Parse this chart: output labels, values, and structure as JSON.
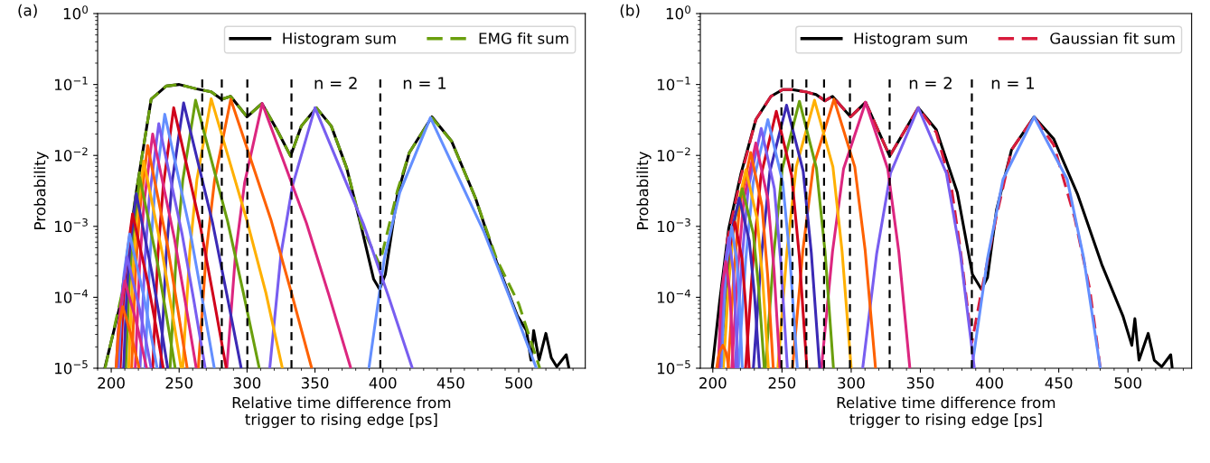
{
  "chart_data": [
    {
      "type": "line",
      "title": "(a)",
      "xlabel": "Relative time difference from\ntrigger to rising edge [ps]",
      "ylabel": "Probability",
      "log": "y",
      "legend": "top right",
      "grid": false,
      "xlim": [
        190,
        549
      ],
      "xticks": [
        200,
        250,
        300,
        350,
        400,
        450,
        500
      ],
      "ylim": [
        1e-05,
        1
      ],
      "yticks": [
        {
          "value": 1e-05,
          "label": "10$^{−5}$"
        },
        {
          "value": 0.0001,
          "label": "10$^{−4}$"
        },
        {
          "value": 0.001,
          "label": "10$^{−3}$"
        },
        {
          "value": 0.01,
          "label": "10$^{−2}$"
        },
        {
          "value": 0.1,
          "label": "10$^{−1}$"
        },
        {
          "value": 1,
          "label": "10$^{0}$"
        }
      ],
      "ref_lines": [
        {
          "axis": "x",
          "value": 267.0,
          "color": "#000000",
          "line_style": "dashed"
        },
        {
          "axis": "x",
          "value": 281.4,
          "color": "#000000",
          "line_style": "dashed"
        },
        {
          "axis": "x",
          "value": 300.2,
          "color": "#000000",
          "line_style": "dashed"
        },
        {
          "axis": "x",
          "value": 332.7,
          "color": "#000000",
          "line_style": "dashed"
        },
        {
          "axis": "x",
          "value": 398.1,
          "color": "#000000",
          "line_style": "dashed"
        }
      ],
      "annotations": [
        "n = 2",
        "n = 1"
      ],
      "series": [
        {
          "color": "#fe6100",
          "x": [
            203.6,
            204.8,
            206.0,
            208.4,
            214.5,
            217.6,
            220.6
          ],
          "values": [
            1e-05,
            2.4e-05,
            4.1e-05,
            7.4e-05,
            3e-05,
            1.7e-05,
            1e-05
          ]
        },
        {
          "color": "#dc267f",
          "x": [
            203.6,
            205.2,
            206.8,
            210.0,
            218.1,
            222.1,
            226.1
          ],
          "values": [
            1e-05,
            3.5e-05,
            7.2e-05,
            0.00017,
            4.8e-05,
            2.2e-05,
            1e-05
          ]
        },
        {
          "color": "#785ef0",
          "x": [
            204.7,
            206.5,
            208.2,
            211.7,
            220.6,
            225.0,
            229.4
          ],
          "values": [
            1e-05,
            4.9e-05,
            0.000126,
            0.00037,
            7.2e-05,
            2.8e-05,
            1e-05
          ]
        },
        {
          "color": "#648fff",
          "x": [
            205.3,
            207.4,
            209.4,
            213.5,
            223.7,
            228.7,
            233.8
          ],
          "values": [
            1e-05,
            6.8e-05,
            0.00021,
            0.00078,
            0.00011,
            3.4e-05,
            1e-05
          ]
        },
        {
          "color": "#d0021b",
          "x": [
            206.6,
            208.9,
            211.2,
            215.7,
            227.0,
            232.7,
            238.3
          ],
          "values": [
            1e-05,
            8.9e-05,
            0.00034,
            0.0015,
            0.00016,
            4.1e-05,
            1e-05
          ]
        },
        {
          "color": "#3b2ab5",
          "x": [
            209.1,
            211.4,
            213.8,
            218.4,
            230.0,
            235.8,
            241.6
          ],
          "values": [
            1e-05,
            0.00012,
            0.00052,
            0.0029,
            0.00022,
            4.9e-05,
            1e-05
          ]
        },
        {
          "color": "#6a9f0d",
          "x": [
            210.6,
            213.2,
            215.8,
            221.0,
            234.1,
            240.6,
            247.1
          ],
          "values": [
            1e-05,
            0.00015,
            0.00076,
            0.0049,
            0.0003,
            5.6e-05,
            1e-05
          ]
        },
        {
          "color": "#ffb000",
          "x": [
            212.8,
            215.6,
            218.4,
            223.9,
            237.7,
            244.6,
            251.5
          ],
          "values": [
            1e-05,
            0.00019,
            0.0011,
            0.0083,
            0.00041,
            6.6e-05,
            1e-05
          ]
        },
        {
          "color": "#fe6100",
          "x": [
            215.0,
            217.9,
            220.9,
            226.8,
            241.4,
            248.6,
            255.9
          ],
          "values": [
            1e-05,
            0.00023,
            0.0016,
            0.0138,
            0.00054,
            7.6e-05,
            1e-05
          ]
        },
        {
          "color": "#dc267f",
          "x": [
            217.7,
            220.9,
            224.1,
            230.5,
            246.6,
            254.6,
            262.6
          ],
          "values": [
            1e-05,
            0.00028,
            0.0021,
            0.02,
            0.00066,
            8.5e-05,
            1e-05
          ]
        },
        {
          "color": "#785ef0",
          "x": [
            221.2,
            224.7,
            228.1,
            235.0,
            252.1,
            260.7,
            269.2
          ],
          "values": [
            1e-05,
            0.00032,
            0.0026,
            0.028,
            0.00079,
            9.3e-05,
            1e-05
          ]
        },
        {
          "color": "#648fff",
          "x": [
            224.8,
            228.5,
            232.1,
            239.4,
            257.7,
            266.8,
            275.9
          ],
          "values": [
            1e-05,
            0.00037,
            0.0032,
            0.038,
            0.00093,
            0.0001,
            1e-05
          ]
        },
        {
          "color": "#d0021b",
          "x": [
            230.5,
            234.4,
            238.3,
            246.0,
            265.4,
            275.0,
            284.7
          ],
          "values": [
            1e-05,
            0.00041,
            0.0037,
            0.047,
            0.00105,
            0.000107,
            1e-05
          ]
        },
        {
          "color": "#3b2ab5",
          "x": [
            236.3,
            240.6,
            244.8,
            253.3,
            274.5,
            285.1,
            295.7
          ],
          "values": [
            1e-05,
            0.00044,
            0.0042,
            0.055,
            0.00115,
            0.00011,
            1e-05
          ]
        },
        {
          "color": "#6a9f0d",
          "x": [
            243.3,
            248.0,
            252.7,
            262.1,
            285.6,
            297.3,
            309.0
          ],
          "values": [
            1e-05,
            0.00045,
            0.0045,
            0.06,
            0.0012,
            0.000115,
            1e-05
          ]
        },
        {
          "color": "#ffb000",
          "x": [
            252.6,
            257.9,
            263.1,
            273.6,
            299.8,
            313.9,
            326.0
          ],
          "values": [
            1e-05,
            0.00046,
            0.0046,
            0.063,
            0.00123,
            0.000115,
            1e-05
          ]
        },
        {
          "color": "#fe6100",
          "x": [
            264.1,
            270.1,
            276.1,
            288.0,
            317.8,
            332.7,
            347.6
          ],
          "values": [
            1e-05,
            0.00046,
            0.0045,
            0.062,
            0.0012,
            0.000115,
            1e-05
          ]
        },
        {
          "color": "#dc267f",
          "x": [
            285.1,
            291.6,
            298.2,
            311.2,
            343.8,
            360.1,
            376.4
          ],
          "values": [
            1e-05,
            0.00043,
            0.0041,
            0.054,
            0.0011,
            0.00011,
            1e-05
          ]
        },
        {
          "color": "#785ef0",
          "x": [
            316.7,
            325.0,
            333.4,
            350.0,
            385.9,
            403.8,
            421.7
          ],
          "values": [
            1e-05,
            0.00041,
            0.0037,
            0.047,
            0.00105,
            0.000107,
            1e-05
          ]
        },
        {
          "color": "#648fff",
          "x": [
            389.7,
            401.0,
            412.4,
            435.0,
            474.0,
            493.5,
            513.0
          ],
          "values": [
            1e-05,
            0.00035,
            0.003,
            0.034,
            0.00087,
            9.8e-05,
            1e-05
          ]
        },
        {
          "name": "Histogram sum",
          "color": "#000000",
          "line_style": "solid",
          "x": [
            195.2,
            207.3,
            218.4,
            229.4,
            240.5,
            250,
            262.5,
            273.6,
            281.3,
            287.9,
            300,
            311,
            322,
            332,
            340,
            351,
            362,
            373.4,
            384.4,
            393.2,
            397.6,
            401.8,
            410.7,
            419.5,
            436.1,
            450.5,
            468.2,
            483.6,
            499,
            505.7,
            509,
            511,
            515,
            520,
            524,
            528,
            535,
            537
          ],
          "values": [
            1e-05,
            8.9e-05,
            0.003,
            0.062,
            0.095,
            0.1,
            0.087,
            0.079,
            0.062,
            0.068,
            0.035,
            0.054,
            0.023,
            0.0098,
            0.026,
            0.047,
            0.026,
            0.0066,
            0.00093,
            0.00018,
            0.00013,
            0.00021,
            0.0028,
            0.011,
            0.035,
            0.016,
            0.0025,
            0.00032,
            5.5e-05,
            3.4e-05,
            1.3e-05,
            3.4e-05,
            1.3e-05,
            3.1e-05,
            1.4e-05,
            1.05e-05,
            1.55e-05,
            1e-05
          ]
        },
        {
          "name": "EMG fit sum",
          "color": "#6a9f0d",
          "line_style": "dashed",
          "x": [
            195.5,
            207.3,
            218.4,
            229.4,
            240.5,
            250,
            262.5,
            273.6,
            281.3,
            287.9,
            300,
            311,
            322,
            332,
            340,
            351,
            362,
            373.4,
            384.4,
            397.6,
            410.7,
            419.5,
            436.1,
            450.5,
            468.2,
            483.6,
            500,
            515.5
          ],
          "values": [
            1e-05,
            0.0001,
            0.003,
            0.062,
            0.095,
            0.1,
            0.087,
            0.079,
            0.062,
            0.068,
            0.035,
            0.054,
            0.023,
            0.0098,
            0.026,
            0.047,
            0.026,
            0.0066,
            0.001,
            0.00029,
            0.0032,
            0.011,
            0.034,
            0.016,
            0.0025,
            0.00035,
            8.1e-05,
            1e-05
          ]
        }
      ]
    },
    {
      "type": "line",
      "title": "(b)",
      "xlabel": "Relative time difference from\ntrigger to rising edge [ps]",
      "ylabel": "Probability",
      "log": "y",
      "legend": "top right",
      "grid": false,
      "xlim": [
        191,
        546
      ],
      "xticks": [
        200,
        250,
        300,
        350,
        400,
        450,
        500
      ],
      "ylim": [
        1e-05,
        1
      ],
      "yticks": [
        {
          "value": 1e-05,
          "label": "10$^{−5}$"
        },
        {
          "value": 0.0001,
          "label": "10$^{−4}$"
        },
        {
          "value": 0.001,
          "label": "10$^{−3}$"
        },
        {
          "value": 0.01,
          "label": "10$^{−2}$"
        },
        {
          "value": 0.1,
          "label": "10$^{−1}$"
        },
        {
          "value": 1,
          "label": "10$^{0}$"
        }
      ],
      "ref_lines": [
        {
          "axis": "x",
          "value": 249.6,
          "color": "#000000",
          "line_style": "dashed"
        },
        {
          "axis": "x",
          "value": 257.6,
          "color": "#000000",
          "line_style": "dashed"
        },
        {
          "axis": "x",
          "value": 267.6,
          "color": "#000000",
          "line_style": "dashed"
        },
        {
          "axis": "x",
          "value": 280.4,
          "color": "#000000",
          "line_style": "dashed"
        },
        {
          "axis": "x",
          "value": 299.1,
          "color": "#000000",
          "line_style": "dashed"
        },
        {
          "axis": "x",
          "value": 327.8,
          "color": "#000000",
          "line_style": "dashed"
        },
        {
          "axis": "x",
          "value": 387.2,
          "color": "#000000",
          "line_style": "dashed"
        }
      ],
      "annotations": [
        "n = 2",
        "n = 1"
      ],
      "series": [
        {
          "color": "#fe6100",
          "x": [
            202.8,
            203.9,
            205.0,
            207.2,
            209.4,
            210.4,
            211.5
          ],
          "values": [
            1e-05,
            1.4e-05,
            1.7e-05,
            2.1e-05,
            1.7e-05,
            1.4e-05,
            1e-05
          ]
        },
        {
          "color": "#dc267f",
          "x": [
            203.9,
            205.3,
            206.6,
            209.3,
            212.1,
            213.4,
            214.8
          ],
          "values": [
            1e-05,
            4.6e-05,
            0.00013,
            0.00032,
            0.00013,
            4.6e-05,
            1e-05
          ]
        },
        {
          "color": "#785ef0",
          "x": [
            205.0,
            206.6,
            208.3,
            211.5,
            214.8,
            216.4,
            218.0
          ],
          "values": [
            1e-05,
            6.3e-05,
            0.00024,
            0.00069,
            0.00024,
            6.3e-05,
            1e-05
          ]
        },
        {
          "color": "#648fff",
          "x": [
            206.1,
            208.0,
            209.9,
            213.7,
            217.5,
            219.4,
            221.3
          ],
          "values": [
            1e-05,
            7.4e-05,
            0.00031,
            0.00098,
            0.00031,
            7.4e-05,
            1e-05
          ]
        },
        {
          "color": "#d0021b",
          "x": [
            205.4,
            208.0,
            210.7,
            215.9,
            221.1,
            223.7,
            226.3
          ],
          "values": [
            1e-05,
            7.9e-05,
            0.00035,
            0.00115,
            0.00035,
            7.9e-05,
            1e-05
          ]
        },
        {
          "color": "#3b2ab5",
          "x": [
            204.6,
            208.2,
            211.9,
            219.1,
            226.4,
            230.1,
            233.7
          ],
          "values": [
            1e-05,
            0.00011,
            0.00062,
            0.0025,
            0.00062,
            0.00011,
            1e-05
          ]
        },
        {
          "color": "#6a9f0d",
          "x": [
            205.4,
            209.4,
            213.4,
            221.3,
            229.3,
            233.2,
            237.2
          ],
          "values": [
            1e-05,
            0.00013,
            0.00079,
            0.0034,
            0.00079,
            0.00013,
            1e-05
          ]
        },
        {
          "color": "#ffb000",
          "x": [
            207.6,
            211.7,
            215.8,
            223.9,
            232.1,
            236.1,
            240.2
          ],
          "values": [
            1e-05,
            0.00017,
            0.00126,
            0.0063,
            0.00126,
            0.00017,
            1e-05
          ]
        },
        {
          "color": "#fe6100",
          "x": [
            211.1,
            215.2,
            219.3,
            227.4,
            235.6,
            239.6,
            243.7
          ],
          "values": [
            1e-05,
            0.00021,
            0.0019,
            0.011,
            0.0019,
            0.00021,
            1e-05
          ]
        },
        {
          "color": "#dc267f",
          "x": [
            213.7,
            218.1,
            222.4,
            231.1,
            239.8,
            244.2,
            248.5
          ],
          "values": [
            1e-05,
            0.00025,
            0.0024,
            0.015,
            0.0024,
            0.00025,
            1e-05
          ]
        },
        {
          "color": "#785ef0",
          "x": [
            216.1,
            220.8,
            225.6,
            235.0,
            244.5,
            249.2,
            253.9
          ],
          "values": [
            1e-05,
            0.0003,
            0.0034,
            0.024,
            0.0034,
            0.0003,
            1e-05
          ]
        },
        {
          "color": "#648fff",
          "x": [
            218.5,
            223.8,
            229.2,
            239.8,
            250.5,
            255.8,
            261.1
          ],
          "values": [
            1e-05,
            0.00034,
            0.0042,
            0.032,
            0.0042,
            0.00034,
            1e-05
          ]
        },
        {
          "color": "#d0021b",
          "x": [
            223.7,
            229.3,
            234.8,
            245.9,
            257.0,
            262.5,
            268.0
          ],
          "values": [
            1e-05,
            0.00038,
            0.0052,
            0.042,
            0.0052,
            0.00038,
            1e-05
          ]
        },
        {
          "color": "#3b2ab5",
          "x": [
            229.3,
            235.3,
            241.3,
            253.3,
            265.3,
            271.2,
            277.2
          ],
          "values": [
            1e-05,
            0.00042,
            0.006,
            0.051,
            0.006,
            0.00042,
            1e-05
          ]
        },
        {
          "color": "#6a9f0d",
          "x": [
            238.0,
            244.2,
            250.3,
            262.6,
            274.9,
            281.1,
            287.2
          ],
          "values": [
            1e-05,
            0.00044,
            0.0066,
            0.058,
            0.0066,
            0.00044,
            1e-05
          ]
        },
        {
          "color": "#ffb000",
          "x": [
            247.0,
            253.6,
            260.3,
            273.5,
            286.8,
            293.4,
            300.0
          ],
          "values": [
            1e-05,
            0.00045,
            0.0069,
            0.06,
            0.0069,
            0.00045,
            1e-05
          ]
        },
        {
          "color": "#fe6100",
          "x": [
            257.6,
            265.1,
            272.6,
            287.6,
            302.6,
            310.1,
            317.6
          ],
          "values": [
            1e-05,
            0.00046,
            0.0069,
            0.062,
            0.0069,
            0.00046,
            1e-05
          ]
        },
        {
          "color": "#dc267f",
          "x": [
            278.5,
            286.5,
            294.5,
            310.4,
            326.4,
            334.4,
            342.4
          ],
          "values": [
            1e-05,
            0.00044,
            0.0065,
            0.056,
            0.0065,
            0.00044,
            1e-05
          ]
        },
        {
          "color": "#785ef0",
          "x": [
            308.3,
            318.4,
            328.4,
            348.5,
            368.8,
            378.9,
            389.0
          ],
          "values": [
            1e-05,
            0.00041,
            0.0056,
            0.047,
            0.0056,
            0.00041,
            1e-05
          ]
        },
        {
          "color": "#648fff",
          "x": [
            387.2,
            398.5,
            409.7,
            432.2,
            456.1,
            468.1,
            480.0
          ],
          "values": [
            1e-05,
            0.00035,
            0.0046,
            0.035,
            0.0046,
            0.00035,
            1e-05
          ]
        },
        {
          "name": "Histogram sum",
          "color": "#000000",
          "line_style": "solid",
          "x": [
            199.6,
            205,
            211.5,
            220.2,
            231.1,
            242,
            250.7,
            257.2,
            268,
            274.6,
            281.1,
            286.5,
            299.6,
            310.4,
            327.8,
            348.5,
            361.5,
            376.7,
            387.6,
            394.1,
            398.5,
            405,
            415.9,
            432.2,
            446.4,
            463.7,
            481.1,
            496.3,
            502.8,
            505,
            508,
            514.6,
            519,
            524.4,
            530.9,
            532
          ],
          "values": [
            1e-05,
            8.9e-05,
            0.00093,
            0.0054,
            0.032,
            0.068,
            0.085,
            0.085,
            0.078,
            0.072,
            0.059,
            0.068,
            0.035,
            0.056,
            0.0098,
            0.047,
            0.023,
            0.003,
            0.00021,
            0.00013,
            0.00019,
            0.0017,
            0.012,
            0.035,
            0.017,
            0.0028,
            0.00029,
            5.5e-05,
            2.1e-05,
            5e-05,
            1.3e-05,
            3.1e-05,
            1.3e-05,
            1.05e-05,
            1.55e-05,
            1e-05
          ]
        },
        {
          "name": "Gaussian fit sum",
          "color": "#d81b3c",
          "line_style": "dashed",
          "x": [
            206.1,
            210.4,
            220.2,
            231.1,
            242,
            250.7,
            257.2,
            268,
            274.6,
            281.1,
            286.5,
            299.6,
            310.4,
            327.8,
            348.5,
            361.5,
            372.4,
            378.9,
            387.2,
            394.1,
            405,
            415.9,
            432.2,
            446.4,
            461.6,
            472.4,
            478.9,
            480
          ],
          "values": [
            1e-05,
            0.00063,
            0.0049,
            0.032,
            0.068,
            0.085,
            0.085,
            0.078,
            0.072,
            0.059,
            0.068,
            0.035,
            0.056,
            0.0098,
            0.047,
            0.021,
            0.0036,
            0.00047,
            2.3e-05,
            0.00012,
            0.0014,
            0.012,
            0.035,
            0.014,
            0.0013,
            0.00013,
            1.5e-05,
            1e-05
          ]
        }
      ]
    }
  ]
}
